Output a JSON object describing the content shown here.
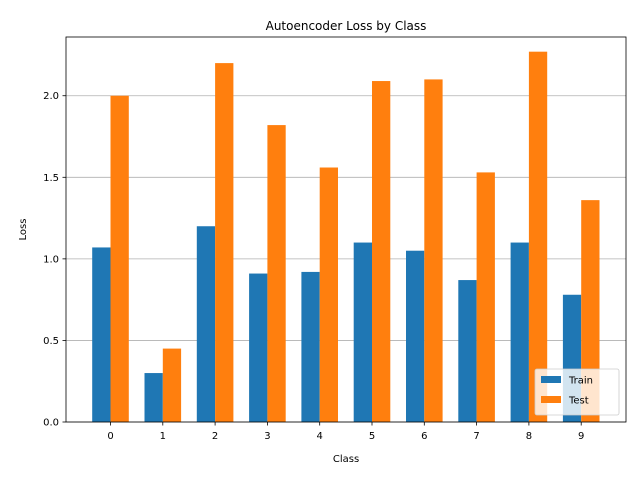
{
  "chart_data": {
    "type": "bar",
    "title": "Autoencoder Loss by Class",
    "xlabel": "Class",
    "ylabel": "Loss",
    "categories": [
      "0",
      "1",
      "2",
      "3",
      "4",
      "5",
      "6",
      "7",
      "8",
      "9"
    ],
    "series": [
      {
        "name": "Train",
        "color": "#1f77b4",
        "values": [
          1.07,
          0.3,
          1.2,
          0.91,
          0.92,
          1.1,
          1.05,
          0.87,
          1.1,
          0.78
        ]
      },
      {
        "name": "Test",
        "color": "#ff7f0e",
        "values": [
          2.0,
          0.45,
          2.2,
          1.82,
          1.56,
          2.09,
          2.1,
          1.53,
          2.27,
          1.36
        ]
      }
    ],
    "ylim": [
      0,
      2.36
    ],
    "yticks": [
      "0.0",
      "0.5",
      "1.0",
      "1.5",
      "2.0"
    ],
    "grid": "y",
    "legend_position": "lower-right"
  }
}
